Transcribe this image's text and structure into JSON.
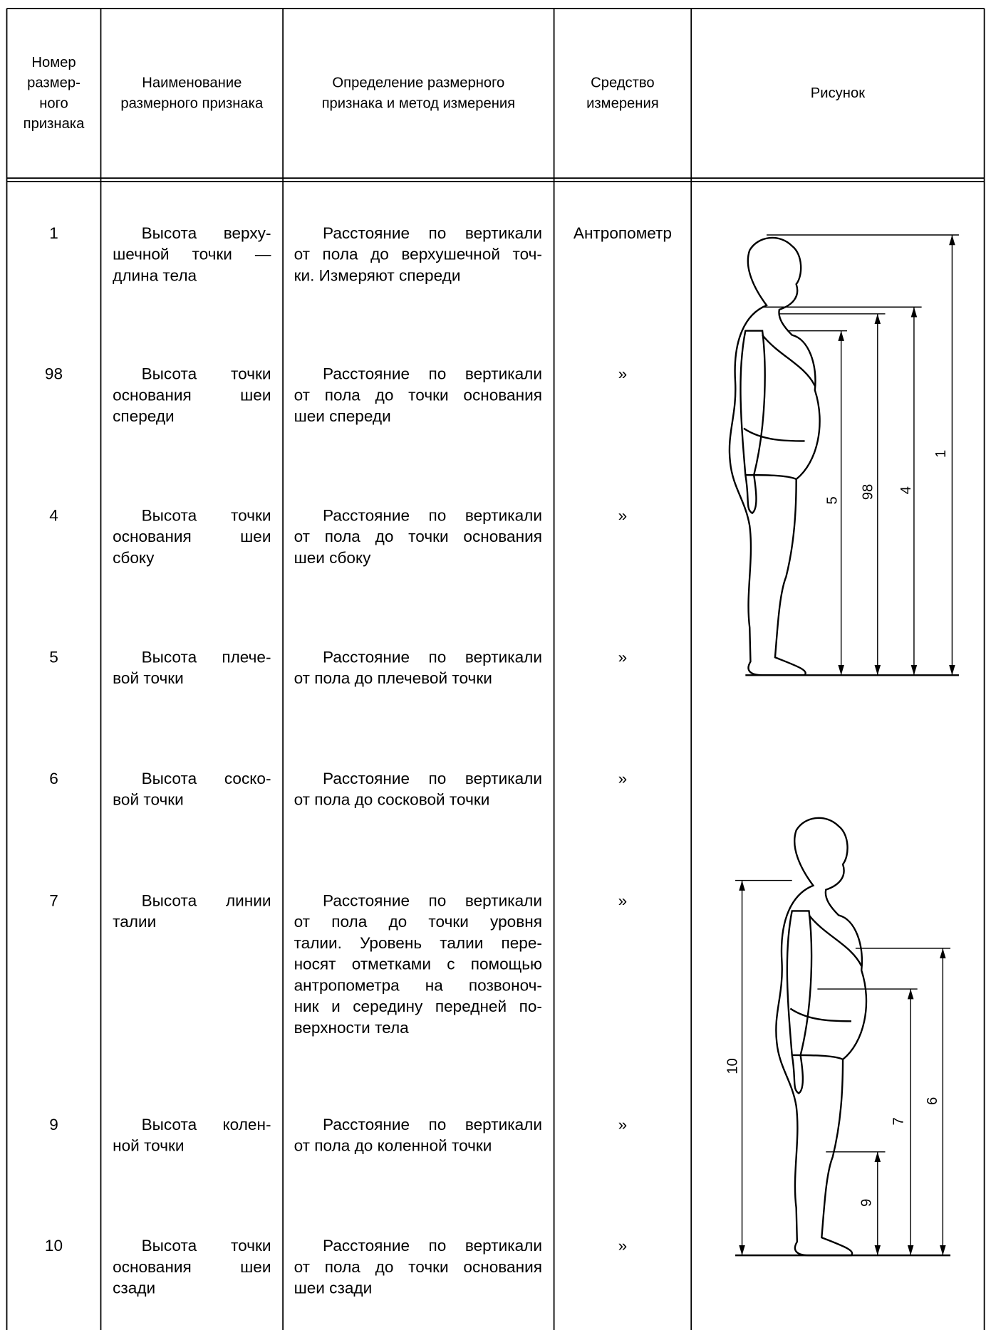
{
  "header": {
    "columns": [
      [
        "Номер",
        "размер-",
        "ного",
        "признака"
      ],
      [
        "Наименование",
        "размерного признака"
      ],
      [
        "Определение размерного",
        "признака и метод измерения"
      ],
      [
        "Средство",
        "измерения"
      ],
      [
        "Рисунок"
      ]
    ]
  },
  "rows": [
    {
      "number": "1",
      "name": [
        "Высота верху-",
        "шечной точки —",
        "длина тела"
      ],
      "definition": [
        "Расстояние по вертикали",
        "от пола до верхушечной точ-",
        "ки. Измеряют спереди"
      ],
      "tool": "Антропометр"
    },
    {
      "number": "98",
      "name": [
        "Высота точки",
        "основания шеи",
        "спереди"
      ],
      "definition": [
        "Расстояние по вертикали",
        "от пола до точки основания",
        "шеи спереди"
      ],
      "tool": "»"
    },
    {
      "number": "4",
      "name": [
        "Высота точки",
        "основания шеи",
        "сбоку"
      ],
      "definition": [
        "Расстояние по вертикали",
        "от пола до точки основания",
        "шеи сбоку"
      ],
      "tool": "»"
    },
    {
      "number": "5",
      "name": [
        "Высота плече-",
        "вой точки"
      ],
      "definition": [
        "Расстояние по вертикали",
        "от пола до плечевой точки"
      ],
      "tool": "»"
    },
    {
      "number": "6",
      "name": [
        "Высота соско-",
        "вой точки"
      ],
      "definition": [
        "Расстояние по вертикали",
        "от пола до сосковой точки"
      ],
      "tool": "»"
    },
    {
      "number": "7",
      "name": [
        "Высота линии",
        "талии"
      ],
      "definition": [
        "Расстояние по вертикали",
        "от пола до точки уровня",
        "талии. Уровень талии пере-",
        "носят отметками с помощью",
        "антропометра на позвоноч-",
        "ник и середину передней по-",
        "верхности тела"
      ],
      "tool": "»"
    },
    {
      "number": "9",
      "name": [
        "Высота колен-",
        "ной точки"
      ],
      "definition": [
        "Расстояние по вертикали",
        "от пола до коленной точки"
      ],
      "tool": "»"
    },
    {
      "number": "10",
      "name": [
        "Высота точки",
        "основания шеи",
        "сзади"
      ],
      "definition": [
        "Расстояние по вертикали",
        "от пола до точки основания",
        "шеи сзади"
      ],
      "tool": "»"
    }
  ],
  "figures": [
    {
      "labels": [
        "1",
        "4",
        "98",
        "5"
      ]
    },
    {
      "labels": [
        "10",
        "6",
        "7",
        "9"
      ]
    }
  ]
}
